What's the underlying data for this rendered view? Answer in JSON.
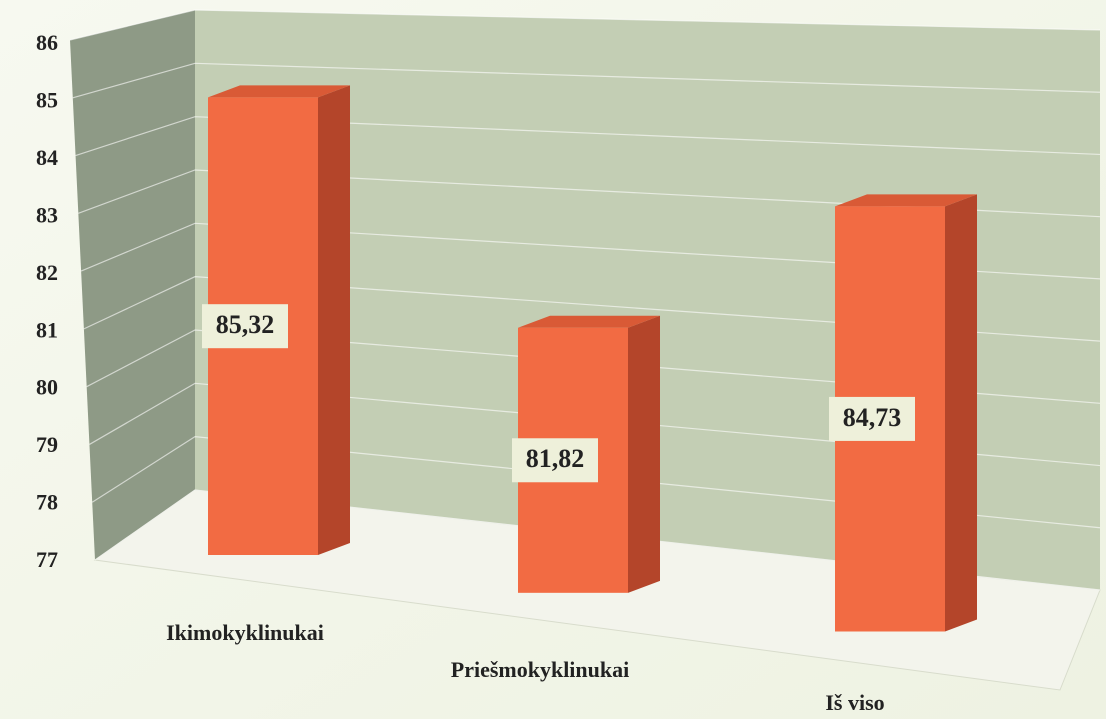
{
  "chart_data": {
    "type": "bar3d",
    "categories": [
      "Ikimokyklinukai",
      "Priešmokyklinukai",
      "Iš viso"
    ],
    "values": [
      85.32,
      81.82,
      84.73
    ],
    "value_labels": [
      "85,32",
      "81,82",
      "84,73"
    ],
    "color": "#f26b43",
    "ylim": [
      77,
      86
    ],
    "yticks": [
      77,
      78,
      79,
      80,
      81,
      82,
      83,
      84,
      85,
      86
    ],
    "grid": true
  }
}
